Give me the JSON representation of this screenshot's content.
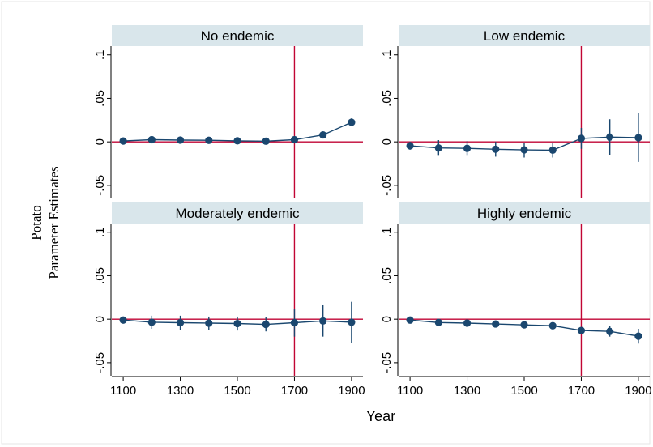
{
  "figure": {
    "ylabel_lines": [
      "Potato",
      "Parameter Estimates"
    ],
    "xlabel": "Year"
  },
  "colors": {
    "series": "#1a476f",
    "reference_line": "#c10534",
    "strip": "#d9e6eb",
    "axis": "#000000",
    "frame": "#e6e6e6"
  },
  "chart_data": {
    "type": "scatter",
    "layout": "2x2 panels",
    "shared_axes": true,
    "xlabel": "Year",
    "ylabel": "Potato Parameter Estimates",
    "xlim": [
      1060,
      1940
    ],
    "ylim": [
      -0.065,
      0.11
    ],
    "xticks": [
      1100,
      1300,
      1500,
      1700,
      1900
    ],
    "xtick_labels": [
      "1100",
      "1300",
      "1500",
      "1700",
      "1900"
    ],
    "yticks": [
      0.1,
      0.05,
      0,
      -0.05
    ],
    "ytick_labels": [
      ".1",
      ".05",
      "0",
      "-.05"
    ],
    "hline": 0,
    "vline": 1700,
    "grid": false,
    "legend": "none",
    "panels": [
      {
        "title": "No endemic",
        "x": [
          1100,
          1200,
          1300,
          1400,
          1500,
          1600,
          1700,
          1800,
          1900
        ],
        "y": [
          0.001,
          0.0025,
          0.002,
          0.0018,
          0.0012,
          0.0008,
          0.0025,
          0.008,
          0.0225
        ],
        "lower": [
          0.0,
          0.001,
          0.0005,
          0.0005,
          0.0,
          -0.0005,
          0.001,
          0.006,
          0.018
        ],
        "upper": [
          0.002,
          0.004,
          0.0035,
          0.003,
          0.0025,
          0.002,
          0.004,
          0.01,
          0.027
        ]
      },
      {
        "title": "Low endemic",
        "x": [
          1100,
          1200,
          1300,
          1400,
          1500,
          1600,
          1700,
          1800,
          1900
        ],
        "y": [
          -0.0045,
          -0.007,
          -0.0075,
          -0.0085,
          -0.0092,
          -0.0095,
          0.004,
          0.0055,
          0.0048
        ],
        "lower": [
          -0.009,
          -0.016,
          -0.016,
          -0.017,
          -0.018,
          -0.018,
          -0.008,
          -0.015,
          -0.023
        ],
        "upper": [
          0.0,
          0.002,
          0.001,
          0.0,
          -0.001,
          -0.001,
          0.016,
          0.026,
          0.033
        ]
      },
      {
        "title": "Moderately endemic",
        "x": [
          1100,
          1200,
          1300,
          1400,
          1500,
          1600,
          1700,
          1800,
          1900
        ],
        "y": [
          -0.001,
          -0.0035,
          -0.004,
          -0.0045,
          -0.005,
          -0.006,
          -0.004,
          -0.002,
          -0.0035
        ],
        "lower": [
          -0.003,
          -0.011,
          -0.012,
          -0.012,
          -0.013,
          -0.014,
          -0.02,
          -0.02,
          -0.027
        ],
        "upper": [
          0.001,
          0.004,
          0.004,
          0.003,
          0.003,
          0.002,
          0.012,
          0.016,
          0.02
        ]
      },
      {
        "title": "Highly endemic",
        "x": [
          1100,
          1200,
          1300,
          1400,
          1500,
          1600,
          1700,
          1800,
          1900
        ],
        "y": [
          -0.001,
          -0.0038,
          -0.0045,
          -0.0055,
          -0.0065,
          -0.0075,
          -0.013,
          -0.014,
          -0.0195
        ],
        "lower": [
          -0.002,
          -0.005,
          -0.006,
          -0.007,
          -0.008,
          -0.009,
          -0.016,
          -0.02,
          -0.028
        ],
        "upper": [
          0.0,
          -0.0025,
          -0.003,
          -0.004,
          -0.005,
          -0.006,
          -0.01,
          -0.008,
          -0.011
        ]
      }
    ]
  }
}
